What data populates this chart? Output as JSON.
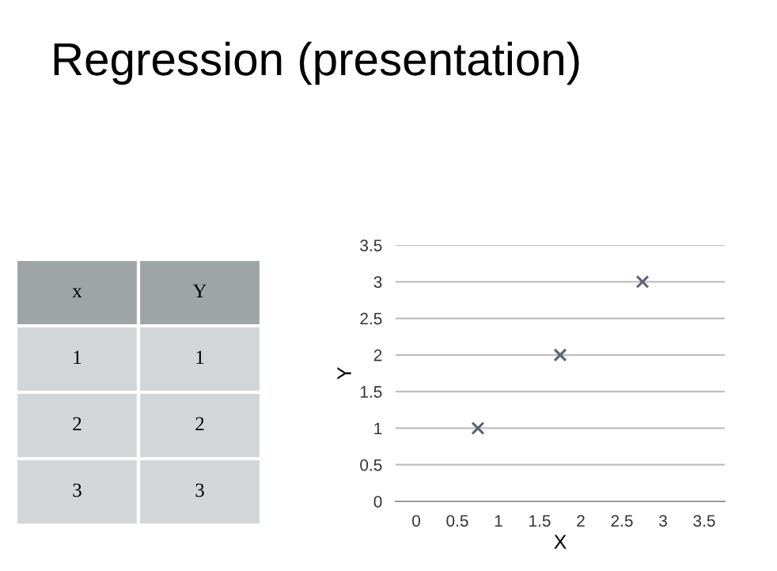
{
  "chart_data": [
    {
      "type": "other",
      "title": "Regression (presentation)",
      "categories": [
        "x",
        "Y"
      ],
      "cell_labels": [
        [
          "1",
          "1"
        ],
        [
          "2",
          "2"
        ],
        [
          "3",
          "3"
        ]
      ]
    },
    {
      "type": "scatter",
      "xlabel": "X",
      "ylabel": "Y",
      "x": [
        0.75,
        1.75,
        2.75
      ],
      "values": [
        1,
        2,
        3
      ],
      "color": "#5a6375",
      "marker": "cross",
      "xlim": [
        -0.25,
        3.75
      ],
      "xticks": [
        0,
        0.5,
        1,
        1.5,
        2,
        2.5,
        3,
        3.5
      ],
      "ylim": [
        0,
        3.5
      ],
      "yticks": [
        0,
        0.5,
        1,
        1.5,
        2,
        2.5,
        3,
        3.5
      ],
      "grid": "y",
      "legend": false
    }
  ]
}
